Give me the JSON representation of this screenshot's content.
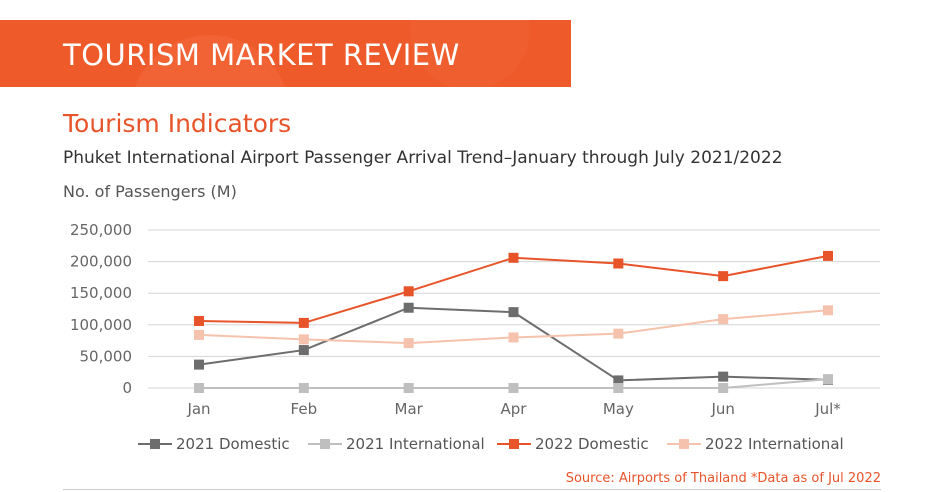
{
  "header": {
    "title": "TOURISM MARKET REVIEW"
  },
  "section": {
    "title": "Tourism Indicators"
  },
  "chart_data": {
    "type": "line",
    "title": "Phuket International Airport Passenger Arrival Trend–January through July 2021/2022",
    "ylabel": "No. of Passengers (M)",
    "xlabel": "",
    "categories": [
      "Jan",
      "Feb",
      "Mar",
      "Apr",
      "May",
      "Jun",
      "Jul*"
    ],
    "ylim": [
      0,
      250000
    ],
    "yticks": [
      0,
      50000,
      100000,
      150000,
      200000,
      250000
    ],
    "ytick_labels": [
      "0",
      "50,000",
      "100,000",
      "150,000",
      "200,000",
      "250,000"
    ],
    "grid": true,
    "legend_position": "bottom",
    "series": [
      {
        "name": "2021 Domestic",
        "color": "#6d6d6d",
        "values": [
          37000,
          60000,
          127000,
          120000,
          12000,
          18000,
          13000
        ]
      },
      {
        "name": "2021 International",
        "color": "#bfbfbf",
        "values": [
          0,
          0,
          0,
          0,
          0,
          0,
          14000
        ]
      },
      {
        "name": "2022 Domestic",
        "color": "#e8542a",
        "values": [
          106000,
          103000,
          153000,
          206000,
          197000,
          177000,
          209000
        ]
      },
      {
        "name": "2022 International",
        "color": "#f5c3ad",
        "values": [
          84000,
          77000,
          71000,
          80000,
          86000,
          109000,
          123000
        ]
      }
    ]
  },
  "footer": {
    "source": "Source: Airports of Thailand *Data as of Jul 2022"
  }
}
